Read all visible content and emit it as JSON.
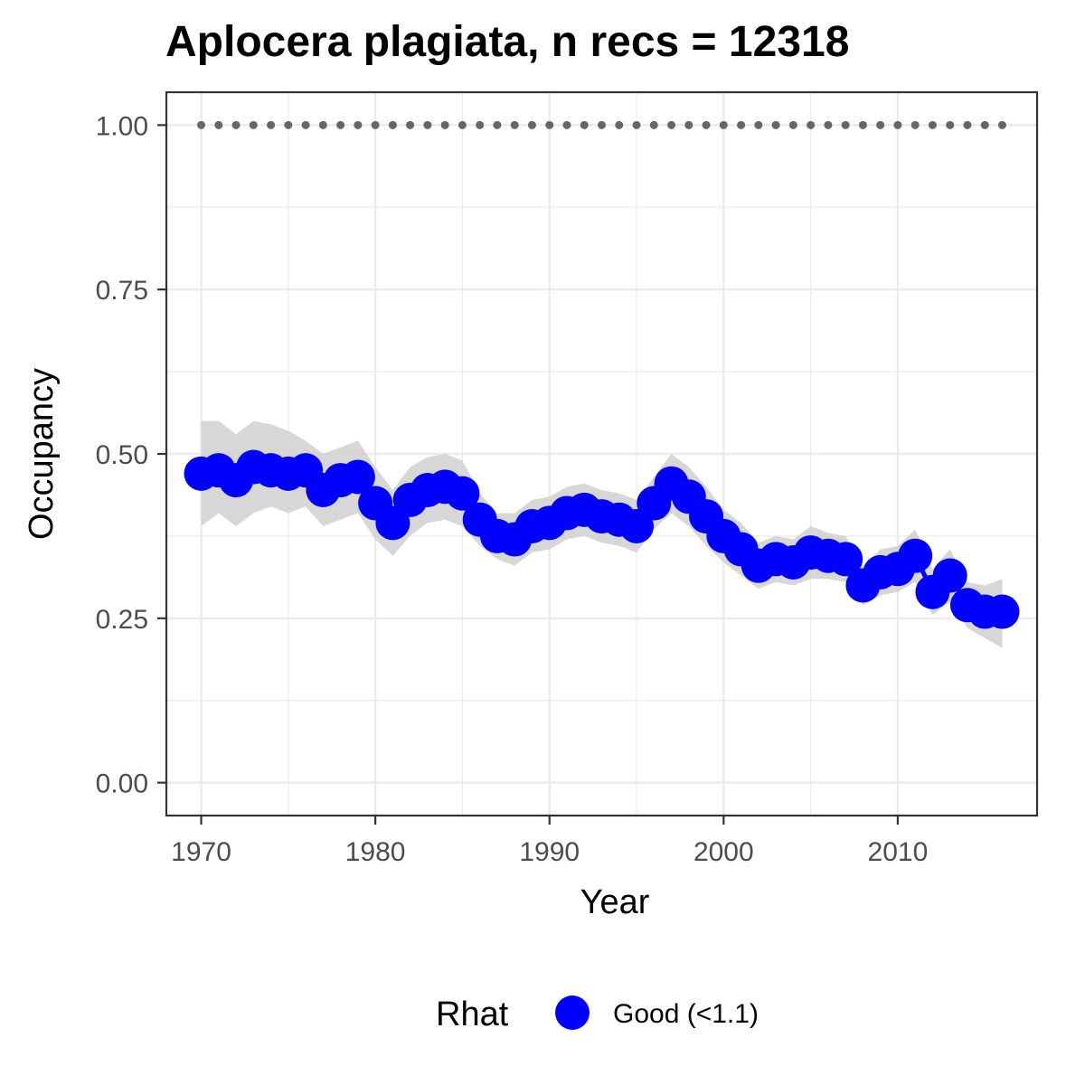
{
  "chart_data": {
    "type": "line",
    "title": "Aplocera plagiata, n recs = 12318",
    "xlabel": "Year",
    "ylabel": "Occupancy",
    "xlim": [
      1968,
      2018
    ],
    "ylim": [
      -0.05,
      1.05
    ],
    "x_ticks": [
      1970,
      1980,
      1990,
      2000,
      2010
    ],
    "y_ticks": [
      0.0,
      0.25,
      0.5,
      0.75,
      1.0
    ],
    "y_tick_labels": [
      "0.00",
      "0.25",
      "0.50",
      "0.75",
      "1.00"
    ],
    "grid": true,
    "legend": {
      "position": "bottom",
      "title": "Rhat",
      "entries": [
        {
          "label": "Good (<1.1)",
          "color": "#0000ff"
        }
      ]
    },
    "colors": {
      "series": "#0000ff",
      "ribbon": "#d3d3d3",
      "reference": "#666666",
      "grid": "#ebebeb",
      "panel_border": "#333333"
    },
    "reference_points": {
      "y": 1.0,
      "x_start": 1970,
      "x_end": 2016,
      "step": 1
    },
    "series": [
      {
        "name": "Good (<1.1)",
        "x": [
          1970,
          1971,
          1972,
          1973,
          1974,
          1975,
          1976,
          1977,
          1978,
          1979,
          1980,
          1981,
          1982,
          1983,
          1984,
          1985,
          1986,
          1987,
          1988,
          1989,
          1990,
          1991,
          1992,
          1993,
          1994,
          1995,
          1996,
          1997,
          1998,
          1999,
          2000,
          2001,
          2002,
          2003,
          2004,
          2005,
          2006,
          2007,
          2008,
          2009,
          2010,
          2011,
          2012,
          2013,
          2014,
          2015,
          2016
        ],
        "y": [
          0.47,
          0.475,
          0.46,
          0.48,
          0.475,
          0.47,
          0.475,
          0.445,
          0.46,
          0.465,
          0.425,
          0.395,
          0.43,
          0.445,
          0.45,
          0.44,
          0.4,
          0.375,
          0.37,
          0.39,
          0.395,
          0.41,
          0.415,
          0.405,
          0.4,
          0.39,
          0.425,
          0.455,
          0.435,
          0.405,
          0.375,
          0.355,
          0.33,
          0.34,
          0.335,
          0.35,
          0.345,
          0.34,
          0.3,
          0.32,
          0.325,
          0.345,
          0.29,
          0.315,
          0.27,
          0.26,
          0.26
        ],
        "lower": [
          0.39,
          0.41,
          0.39,
          0.41,
          0.42,
          0.41,
          0.42,
          0.39,
          0.4,
          0.41,
          0.37,
          0.345,
          0.375,
          0.395,
          0.4,
          0.39,
          0.36,
          0.34,
          0.33,
          0.35,
          0.355,
          0.37,
          0.375,
          0.365,
          0.36,
          0.35,
          0.385,
          0.41,
          0.39,
          0.36,
          0.335,
          0.315,
          0.295,
          0.305,
          0.3,
          0.31,
          0.31,
          0.305,
          0.27,
          0.285,
          0.29,
          0.305,
          0.255,
          0.275,
          0.235,
          0.22,
          0.205
        ],
        "upper": [
          0.55,
          0.55,
          0.53,
          0.55,
          0.545,
          0.535,
          0.52,
          0.5,
          0.51,
          0.52,
          0.48,
          0.445,
          0.48,
          0.495,
          0.5,
          0.49,
          0.44,
          0.41,
          0.41,
          0.43,
          0.435,
          0.45,
          0.455,
          0.445,
          0.44,
          0.43,
          0.465,
          0.5,
          0.48,
          0.45,
          0.415,
          0.395,
          0.365,
          0.375,
          0.37,
          0.39,
          0.38,
          0.375,
          0.33,
          0.355,
          0.36,
          0.385,
          0.325,
          0.355,
          0.305,
          0.3,
          0.31
        ]
      }
    ]
  }
}
